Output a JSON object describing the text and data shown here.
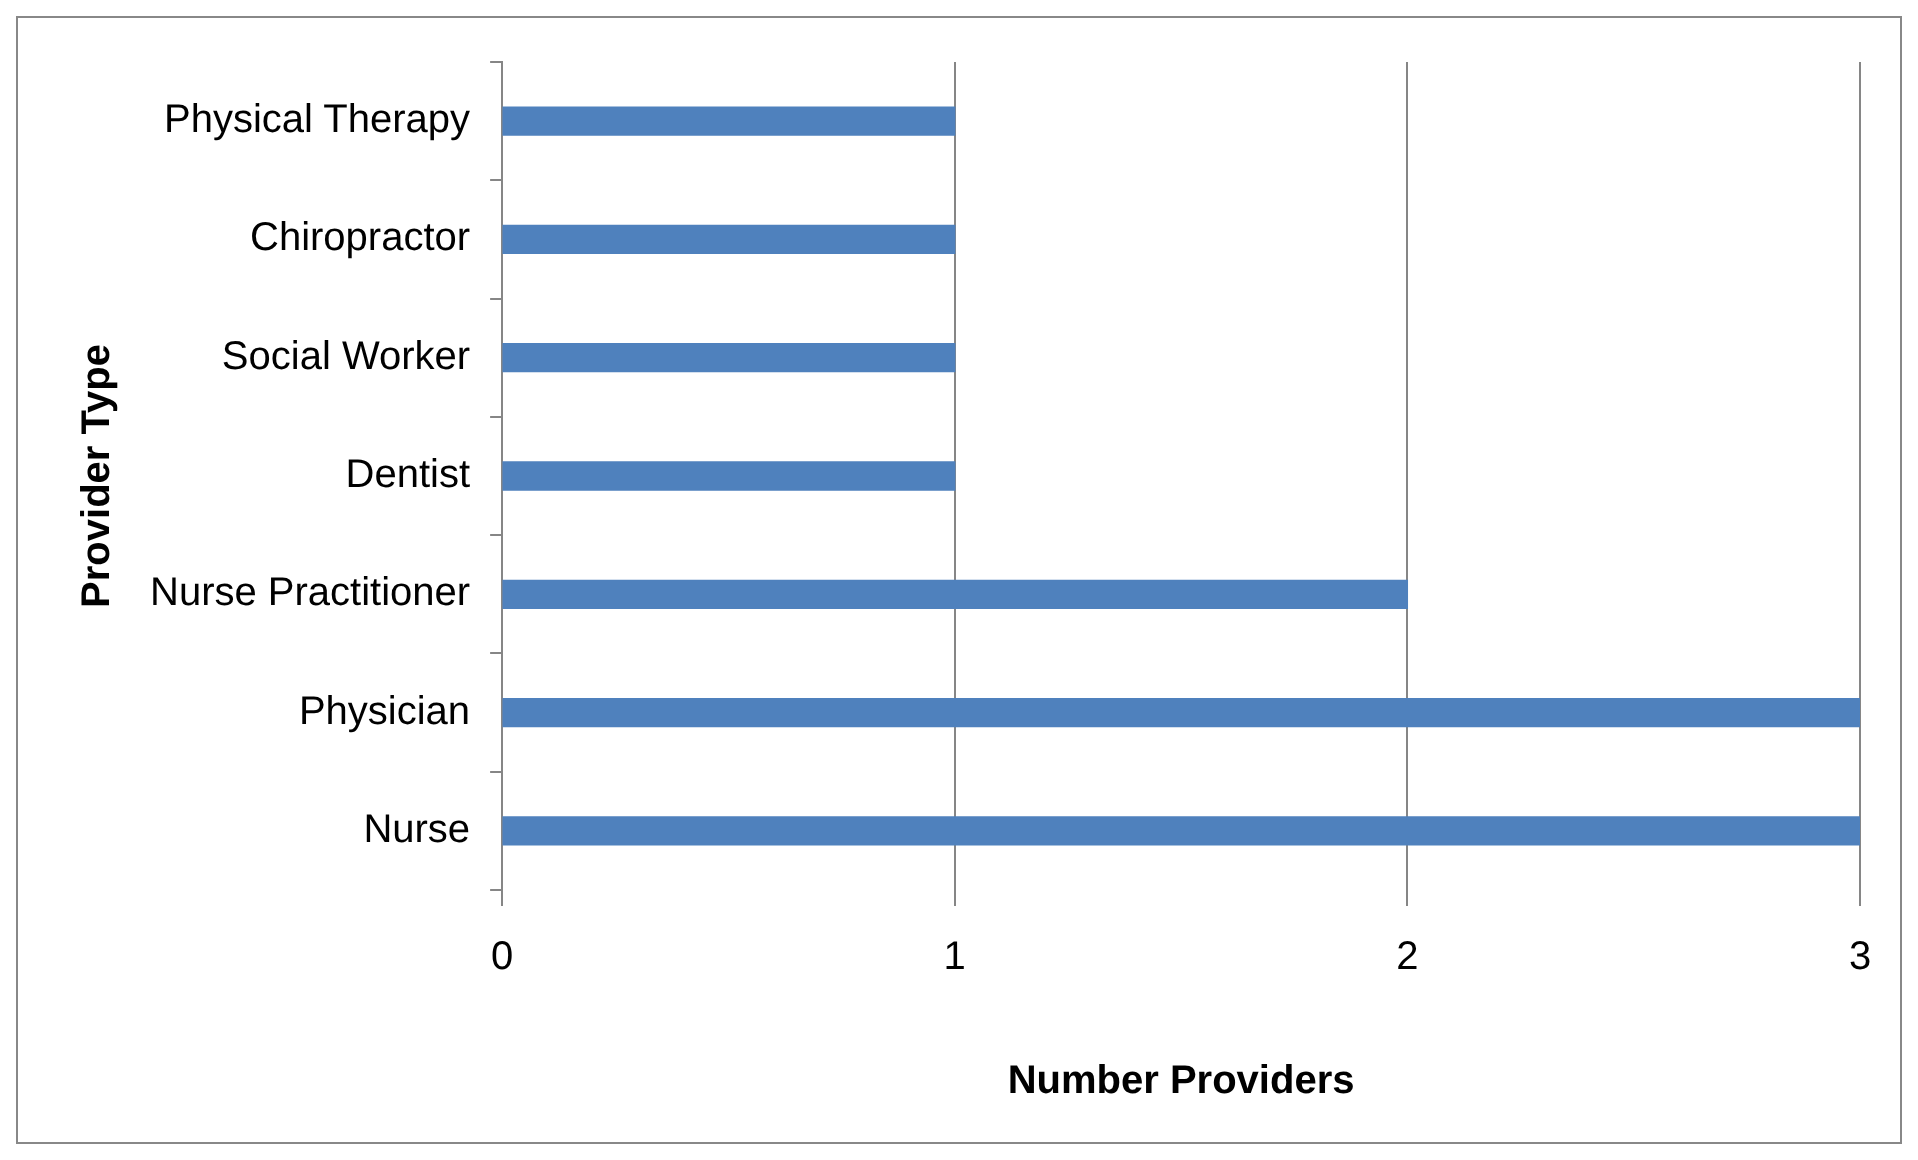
{
  "chart_data": {
    "type": "bar",
    "orientation": "horizontal",
    "xlabel": "Number Providers",
    "ylabel": "Provider Type",
    "categories": [
      "Physical Therapy",
      "Chiropractor",
      "Social Worker",
      "Dentist",
      "Nurse Practitioner",
      "Physician",
      "Nurse"
    ],
    "values": [
      1,
      1,
      1,
      1,
      2,
      3,
      3
    ],
    "color": "#4f81bd",
    "xlim": [
      0,
      3
    ],
    "xticks": [
      0,
      1,
      2,
      3
    ],
    "grid": "x",
    "legend": false
  }
}
